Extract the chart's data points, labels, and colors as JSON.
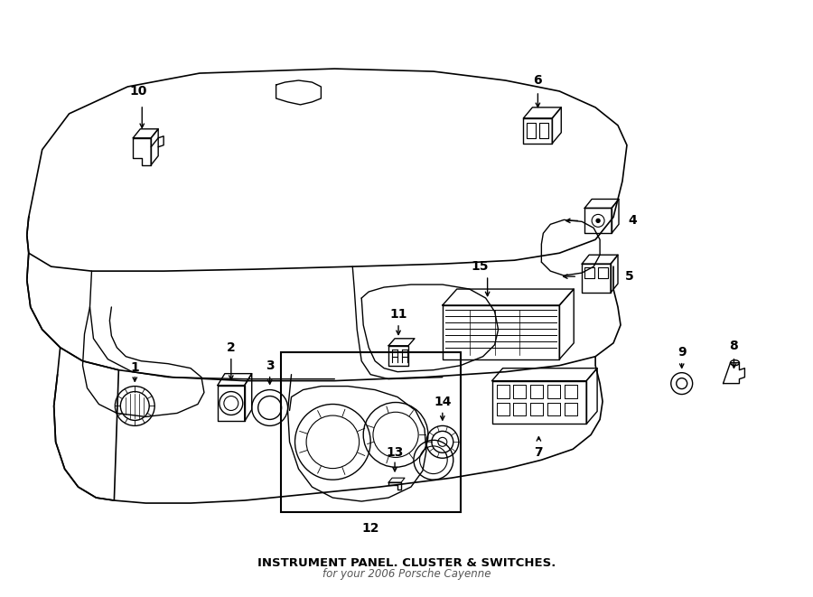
{
  "background_color": "#ffffff",
  "line_color": "#000000",
  "title": "INSTRUMENT PANEL. CLUSTER & SWITCHES.",
  "subtitle": "for your 2006 Porsche Cayenne",
  "fig_width": 9.0,
  "fig_height": 6.61,
  "dpi": 100
}
